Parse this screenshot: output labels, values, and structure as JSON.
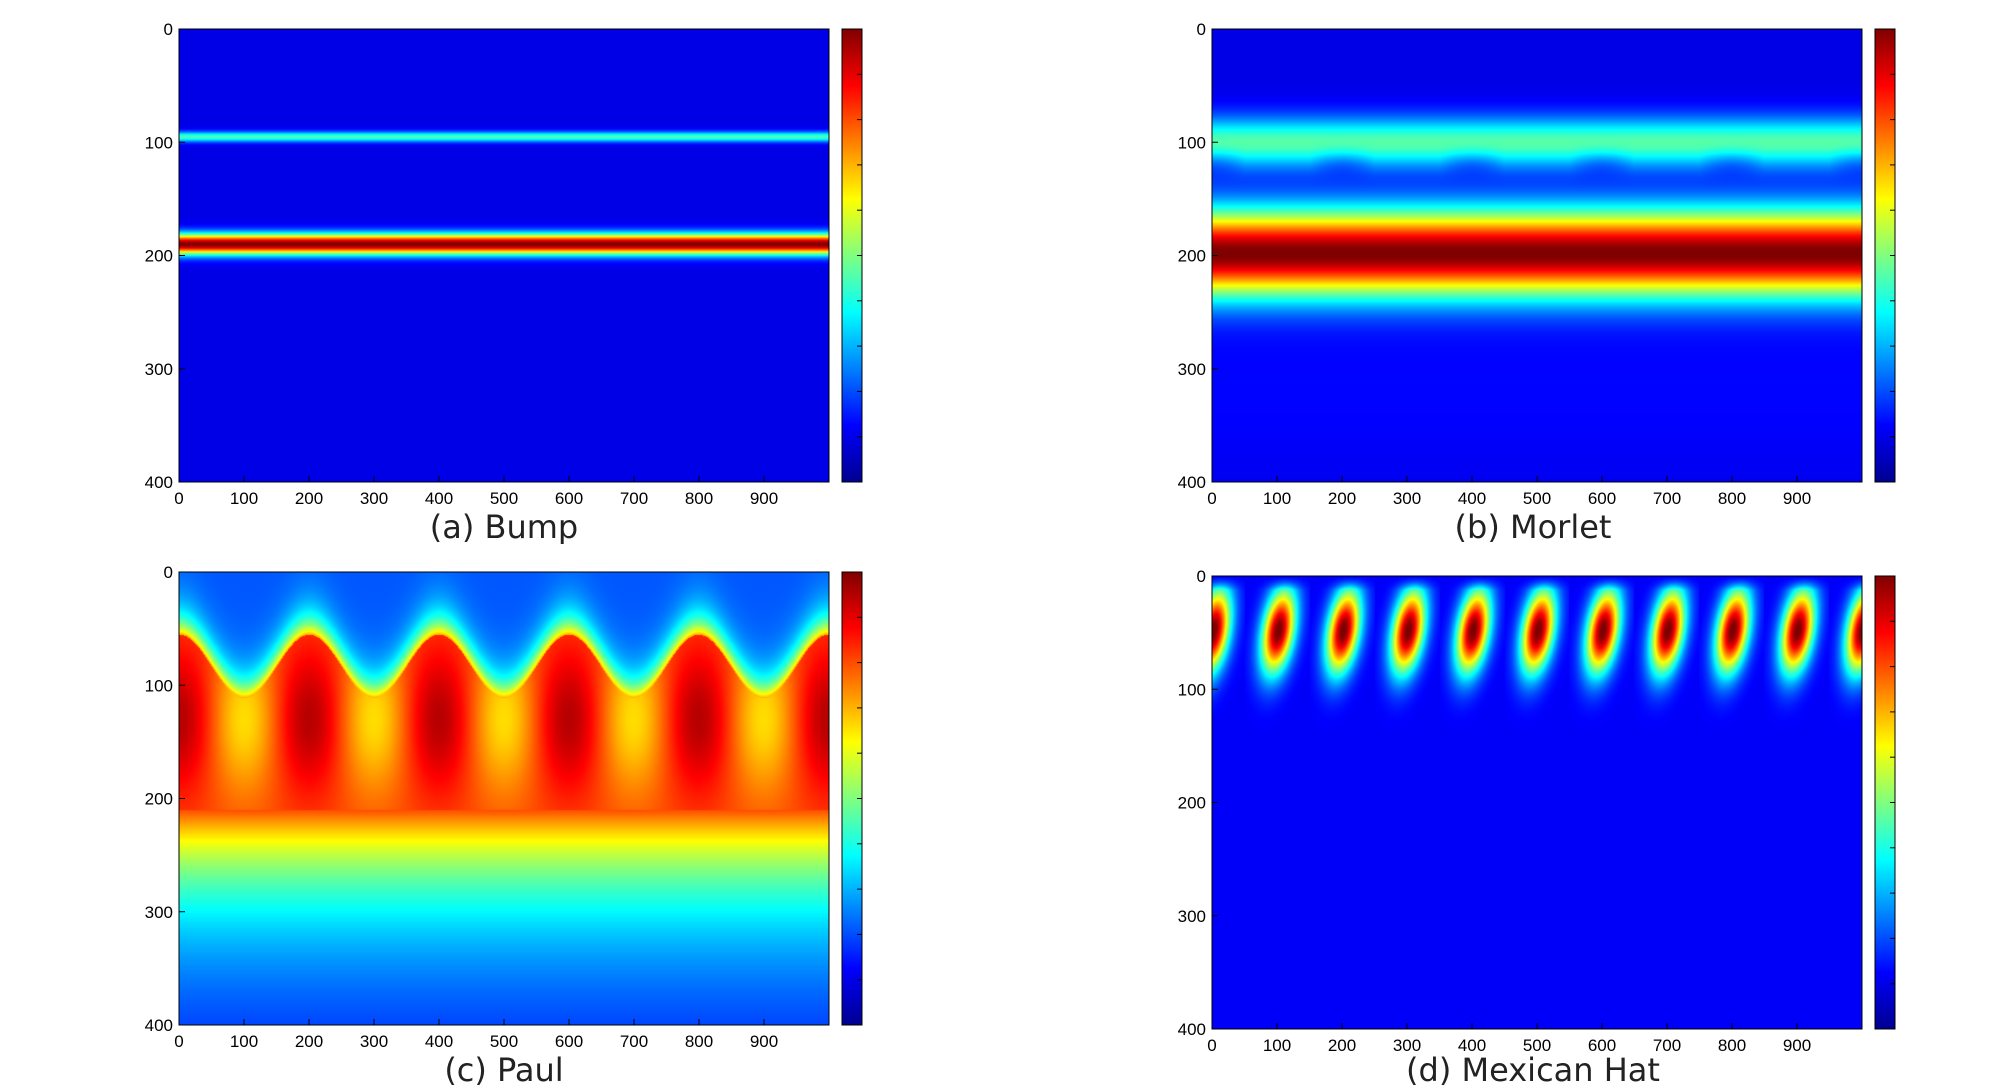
{
  "chart_data": [
    {
      "type": "heatmap",
      "caption": "(a) Bump",
      "pattern": "bump",
      "xlim": [
        0,
        1000
      ],
      "ylim": [
        0,
        400
      ],
      "xticks": [
        "0",
        "100",
        "200",
        "300",
        "400",
        "500",
        "600",
        "700",
        "800",
        "900"
      ],
      "yticks": [
        "0",
        "100",
        "200",
        "300",
        "400"
      ],
      "colormap": "jet",
      "description_values": {
        "bands_at_scale": [
          95,
          190
        ]
      }
    },
    {
      "type": "heatmap",
      "caption": "(b) Morlet",
      "pattern": "morlet",
      "xlim": [
        0,
        1000
      ],
      "ylim": [
        0,
        400
      ],
      "xticks": [
        "0",
        "100",
        "200",
        "300",
        "400",
        "500",
        "600",
        "700",
        "800",
        "900"
      ],
      "yticks": [
        "0",
        "100",
        "200",
        "300",
        "400"
      ],
      "colormap": "jet",
      "description_values": {
        "bands_at_scale": [
          100,
          195
        ]
      }
    },
    {
      "type": "heatmap",
      "caption": "(c) Paul",
      "pattern": "paul",
      "xlim": [
        0,
        1000
      ],
      "ylim": [
        0,
        400
      ],
      "xticks": [
        "0",
        "100",
        "200",
        "300",
        "400",
        "500",
        "600",
        "700",
        "800",
        "900"
      ],
      "yticks": [
        "0",
        "100",
        "200",
        "300",
        "400"
      ],
      "colormap": "jet",
      "description_values": {
        "peak_scale": 130,
        "period": 200
      }
    },
    {
      "type": "heatmap",
      "caption": "(d) Mexican Hat",
      "pattern": "mexhat",
      "xlim": [
        0,
        1000
      ],
      "ylim": [
        0,
        400
      ],
      "xticks": [
        "0",
        "100",
        "200",
        "300",
        "400",
        "500",
        "600",
        "700",
        "800",
        "900"
      ],
      "yticks": [
        "0",
        "100",
        "200",
        "300",
        "400"
      ],
      "colormap": "jet",
      "description_values": {
        "peak_scale": 45,
        "period": 100
      }
    }
  ]
}
